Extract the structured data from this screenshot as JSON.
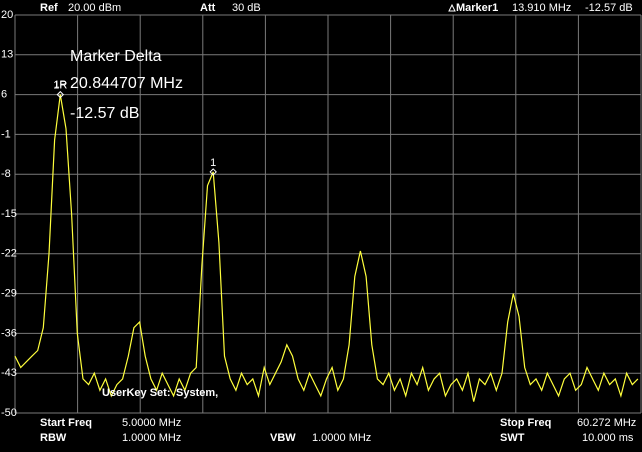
{
  "header": {
    "ref_label": "Ref",
    "ref_value": "20.00 dBm",
    "att_label": "Att",
    "att_value": "30 dB",
    "marker_label": "Marker1",
    "marker_freq": "13.910 MHz",
    "marker_level": "-12.57 dB"
  },
  "overlay": {
    "title": "Marker Delta",
    "ref_tag": "1R",
    "freq": "20.844707 MHz",
    "level": "-12.57 dB"
  },
  "userkey": {
    "label": "UserKey Set:",
    "value": "System,"
  },
  "footer": {
    "start_label": "Start Freq",
    "start_value": "5.0000 MHz",
    "stop_label": "Stop Freq",
    "stop_value": "60.272 MHz",
    "rbw_label": "RBW",
    "rbw_value": "1.0000 MHz",
    "vbw_label": "VBW",
    "vbw_value": "1.0000 MHz",
    "swt_label": "SWT",
    "swt_value": "10.000 ms"
  },
  "chart_data": {
    "type": "line",
    "xlim": [
      5,
      60.272
    ],
    "ylim": [
      -50,
      20
    ],
    "yticks": [
      20,
      13,
      6,
      -1,
      -8,
      -15,
      -22,
      -29,
      -36,
      -43,
      -50
    ],
    "grid": true,
    "x_divisions": 10,
    "x": [
      5,
      5.5,
      6,
      6.5,
      7,
      7.5,
      8,
      8.5,
      9,
      9.5,
      10,
      10.5,
      11,
      11.5,
      12,
      12.5,
      13,
      13.5,
      14,
      14.5,
      15,
      15.5,
      16,
      16.5,
      17,
      17.5,
      18,
      18.5,
      19,
      19.5,
      20,
      20.5,
      21,
      21.5,
      22,
      22.5,
      23,
      23.5,
      24,
      24.5,
      25,
      25.5,
      26,
      26.5,
      27,
      27.5,
      28,
      28.5,
      29,
      29.5,
      30,
      30.5,
      31,
      31.5,
      32,
      32.5,
      33,
      33.5,
      34,
      34.5,
      35,
      35.5,
      36,
      36.5,
      37,
      37.5,
      38,
      38.5,
      39,
      39.5,
      40,
      40.5,
      41,
      41.5,
      42,
      42.5,
      43,
      43.5,
      44,
      44.5,
      45,
      45.5,
      46,
      46.5,
      47,
      47.5,
      48,
      48.5,
      49,
      49.5,
      50,
      50.5,
      51,
      51.5,
      52,
      52.5,
      53,
      53.5,
      54,
      54.5,
      55,
      55.5,
      56,
      56.5,
      57,
      57.5,
      58,
      58.5,
      59,
      59.5,
      60
    ],
    "series": [
      {
        "color": "#ffff3c",
        "values": [
          -40,
          -42,
          -41,
          -40,
          -39,
          -35,
          -22,
          -2,
          6,
          0,
          -15,
          -36,
          -44,
          -45,
          -43,
          -46,
          -44,
          -47,
          -45,
          -44,
          -40,
          -35,
          -34,
          -40,
          -44,
          -46,
          -43,
          -45,
          -47,
          -44,
          -46,
          -43,
          -42,
          -24,
          -10,
          -7.6,
          -20,
          -40,
          -44,
          -46,
          -43,
          -45,
          -44,
          -47,
          -42,
          -45,
          -43,
          -41,
          -38,
          -40,
          -44,
          -46,
          -43,
          -45,
          -47,
          -44,
          -42,
          -46,
          -44,
          -38,
          -26,
          -21.5,
          -26,
          -38,
          -44,
          -45,
          -43,
          -46,
          -44,
          -47,
          -43,
          -45,
          -42,
          -46,
          -44,
          -43,
          -47,
          -45,
          -44,
          -46,
          -43,
          -48,
          -44,
          -45,
          -43,
          -46,
          -43,
          -34,
          -29,
          -33,
          -42,
          -45,
          -44,
          -46,
          -43,
          -45,
          -47,
          -44,
          -43,
          -46,
          -45,
          -42,
          -44,
          -46,
          -43,
          -45,
          -44,
          -47,
          -43,
          -45,
          -44
        ]
      }
    ],
    "markers": [
      {
        "label": "1R",
        "x": 9,
        "y": 6
      },
      {
        "label": "1",
        "x": 22.5,
        "y": -7.6
      }
    ]
  }
}
